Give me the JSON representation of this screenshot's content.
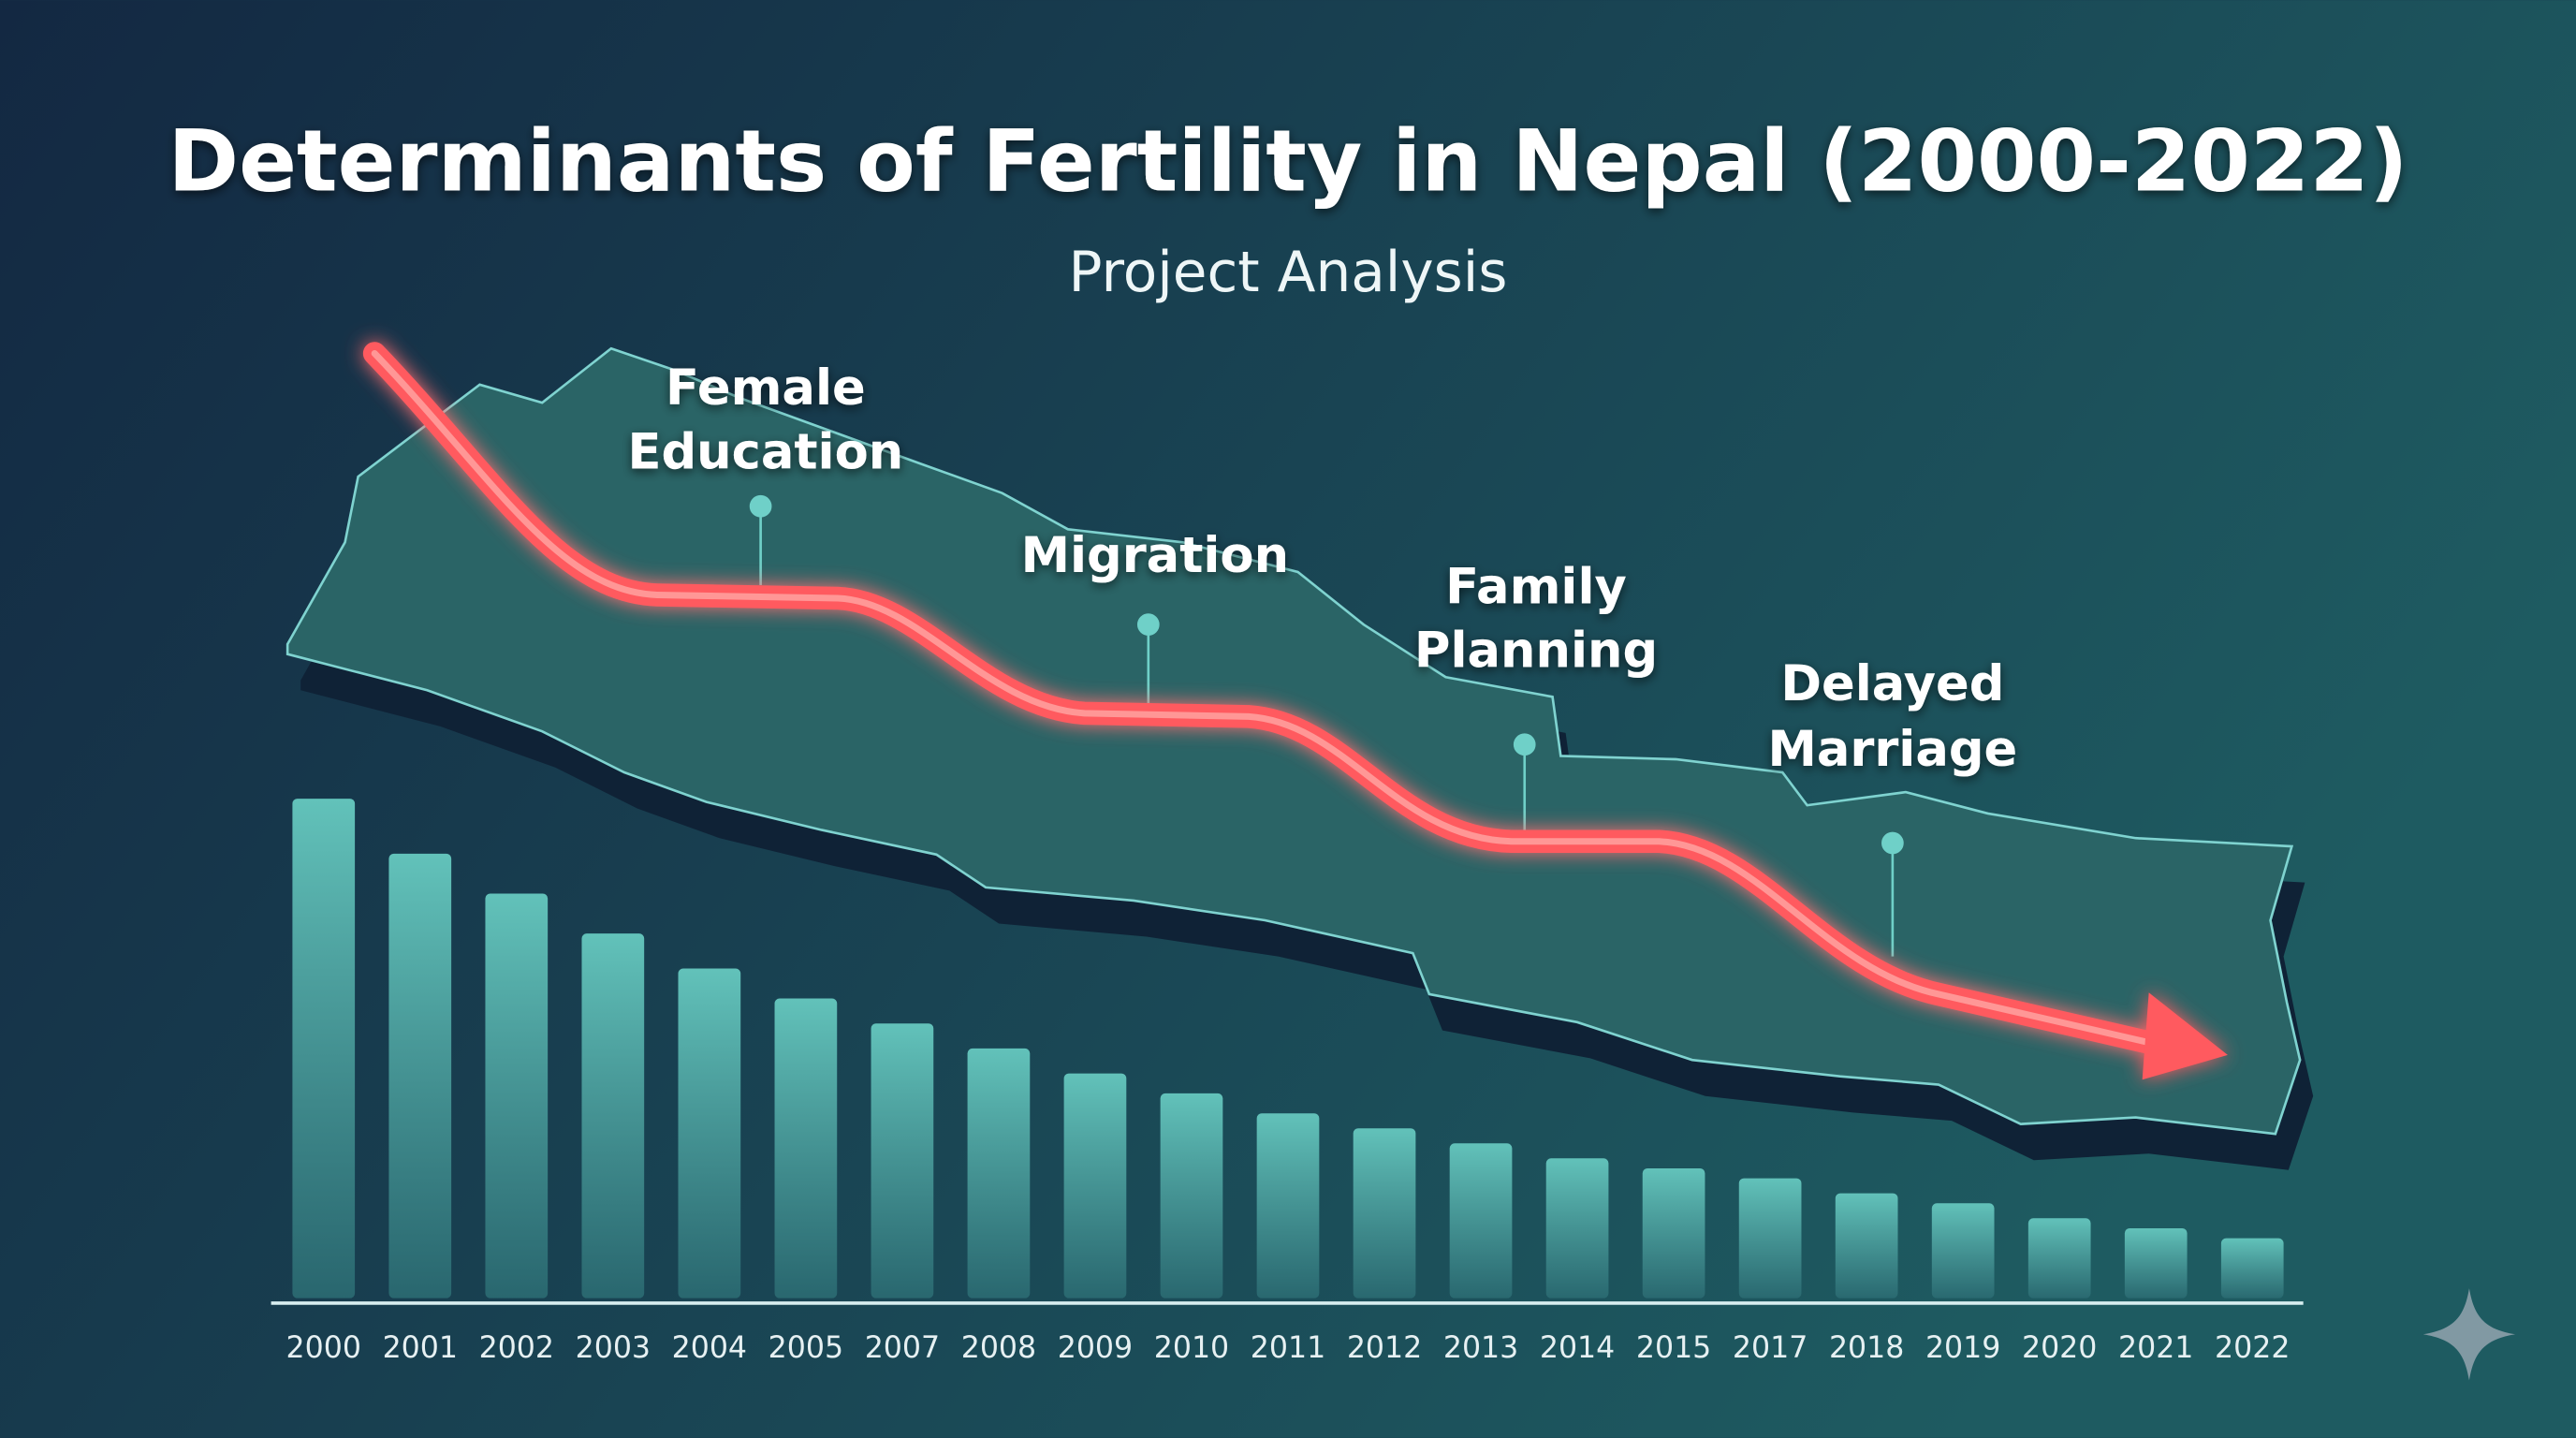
{
  "colors": {
    "background_left": "#142a42",
    "background_right": "#1d5a60",
    "map_fill": "#2a6466",
    "map_edge": "#7fd3d0",
    "bar": "#5fbdb6",
    "trend_arrow": "#ff5a5f",
    "text": "#ffffff"
  },
  "chart_data": {
    "type": "bar",
    "title": "Determinants of Fertility in Nepal (2000-2022)",
    "subtitle": "Project Analysis",
    "xlabel": "",
    "ylabel": "",
    "y_axis_shown": false,
    "grid": false,
    "categories": [
      "2000",
      "2001",
      "2002",
      "2003",
      "2004",
      "2005",
      "2007",
      "2008",
      "2009",
      "2010",
      "2011",
      "2012",
      "2013",
      "2014",
      "2015",
      "2017",
      "2018",
      "2019",
      "2020",
      "2021",
      "2022"
    ],
    "values": [
      100,
      89,
      81,
      73,
      66,
      60,
      55,
      50,
      45,
      41,
      37,
      34,
      31,
      28,
      26,
      24,
      21,
      19,
      16,
      14,
      12
    ],
    "value_units": "relative bar height (no axis printed)",
    "overlay": {
      "type": "downward trend arrow over map of Nepal",
      "annotations": [
        {
          "label_line1": "Female",
          "label_line2": "Education"
        },
        {
          "label_line1": "Migration",
          "label_line2": ""
        },
        {
          "label_line1": "Family",
          "label_line2": "Planning"
        },
        {
          "label_line1": "Delayed",
          "label_line2": "Marriage"
        }
      ]
    }
  },
  "icons": {
    "corner": "sparkle-star-icon"
  }
}
